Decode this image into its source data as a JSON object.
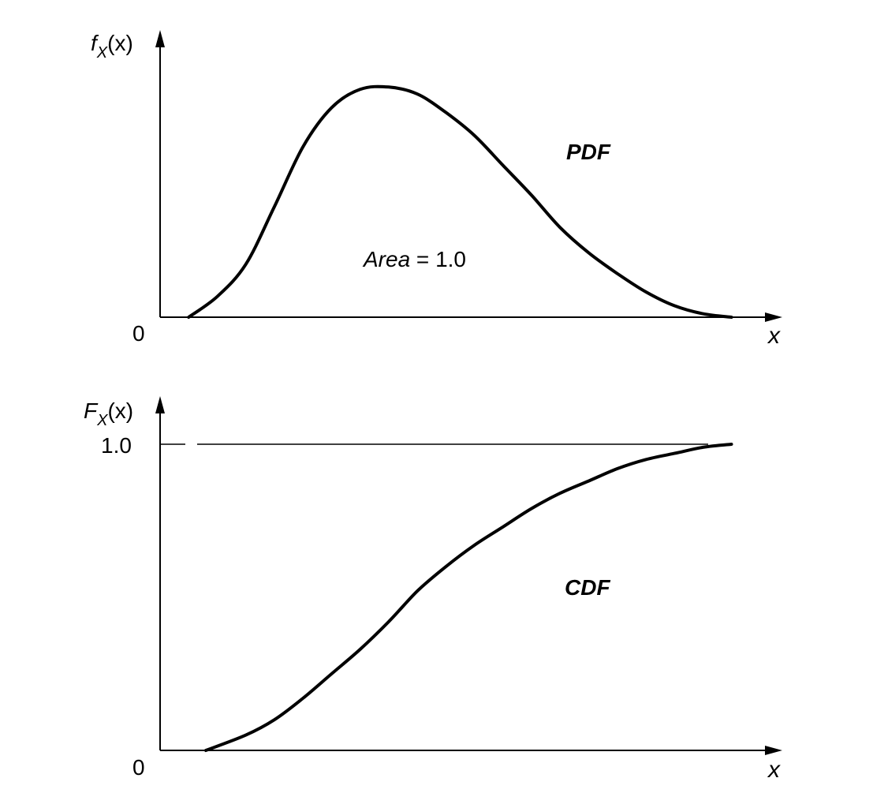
{
  "chart_data": [
    {
      "type": "line",
      "ylabel": {
        "base": "f",
        "sub": "X",
        "arg": "(x)"
      },
      "xlabel": "x",
      "origin_label": "0",
      "curve_label": "PDF",
      "annotation": {
        "italic": "Area",
        "rest": " = 1.0"
      },
      "x": [
        0.05,
        0.1,
        0.15,
        0.2,
        0.25,
        0.3,
        0.35,
        0.4,
        0.45,
        0.5,
        0.55,
        0.6,
        0.65,
        0.7,
        0.75,
        0.8,
        0.85,
        0.9,
        0.95,
        1.0
      ],
      "y": [
        0.0,
        0.09,
        0.23,
        0.48,
        0.74,
        0.91,
        0.99,
        1.0,
        0.97,
        0.89,
        0.79,
        0.66,
        0.53,
        0.39,
        0.28,
        0.19,
        0.11,
        0.05,
        0.015,
        0.0
      ],
      "xlim": [
        0,
        1.1
      ],
      "ylim": [
        0,
        1.2
      ],
      "color": "#000000"
    },
    {
      "type": "line",
      "ylabel": {
        "base": "F",
        "sub": "X",
        "arg": "(x)"
      },
      "xlabel": "x",
      "origin_label": "0",
      "ytick_label": "1.0",
      "curve_label": "CDF",
      "x": [
        0.08,
        0.15,
        0.2,
        0.25,
        0.3,
        0.35,
        0.4,
        0.45,
        0.5,
        0.55,
        0.6,
        0.65,
        0.7,
        0.75,
        0.8,
        0.85,
        0.9,
        0.95,
        1.0
      ],
      "y": [
        0.0,
        0.05,
        0.1,
        0.17,
        0.25,
        0.33,
        0.42,
        0.52,
        0.6,
        0.67,
        0.73,
        0.79,
        0.84,
        0.88,
        0.92,
        0.95,
        0.97,
        0.99,
        1.0
      ],
      "xlim": [
        0,
        1.1
      ],
      "ylim": [
        0,
        1.0
      ],
      "color": "#000000"
    }
  ]
}
